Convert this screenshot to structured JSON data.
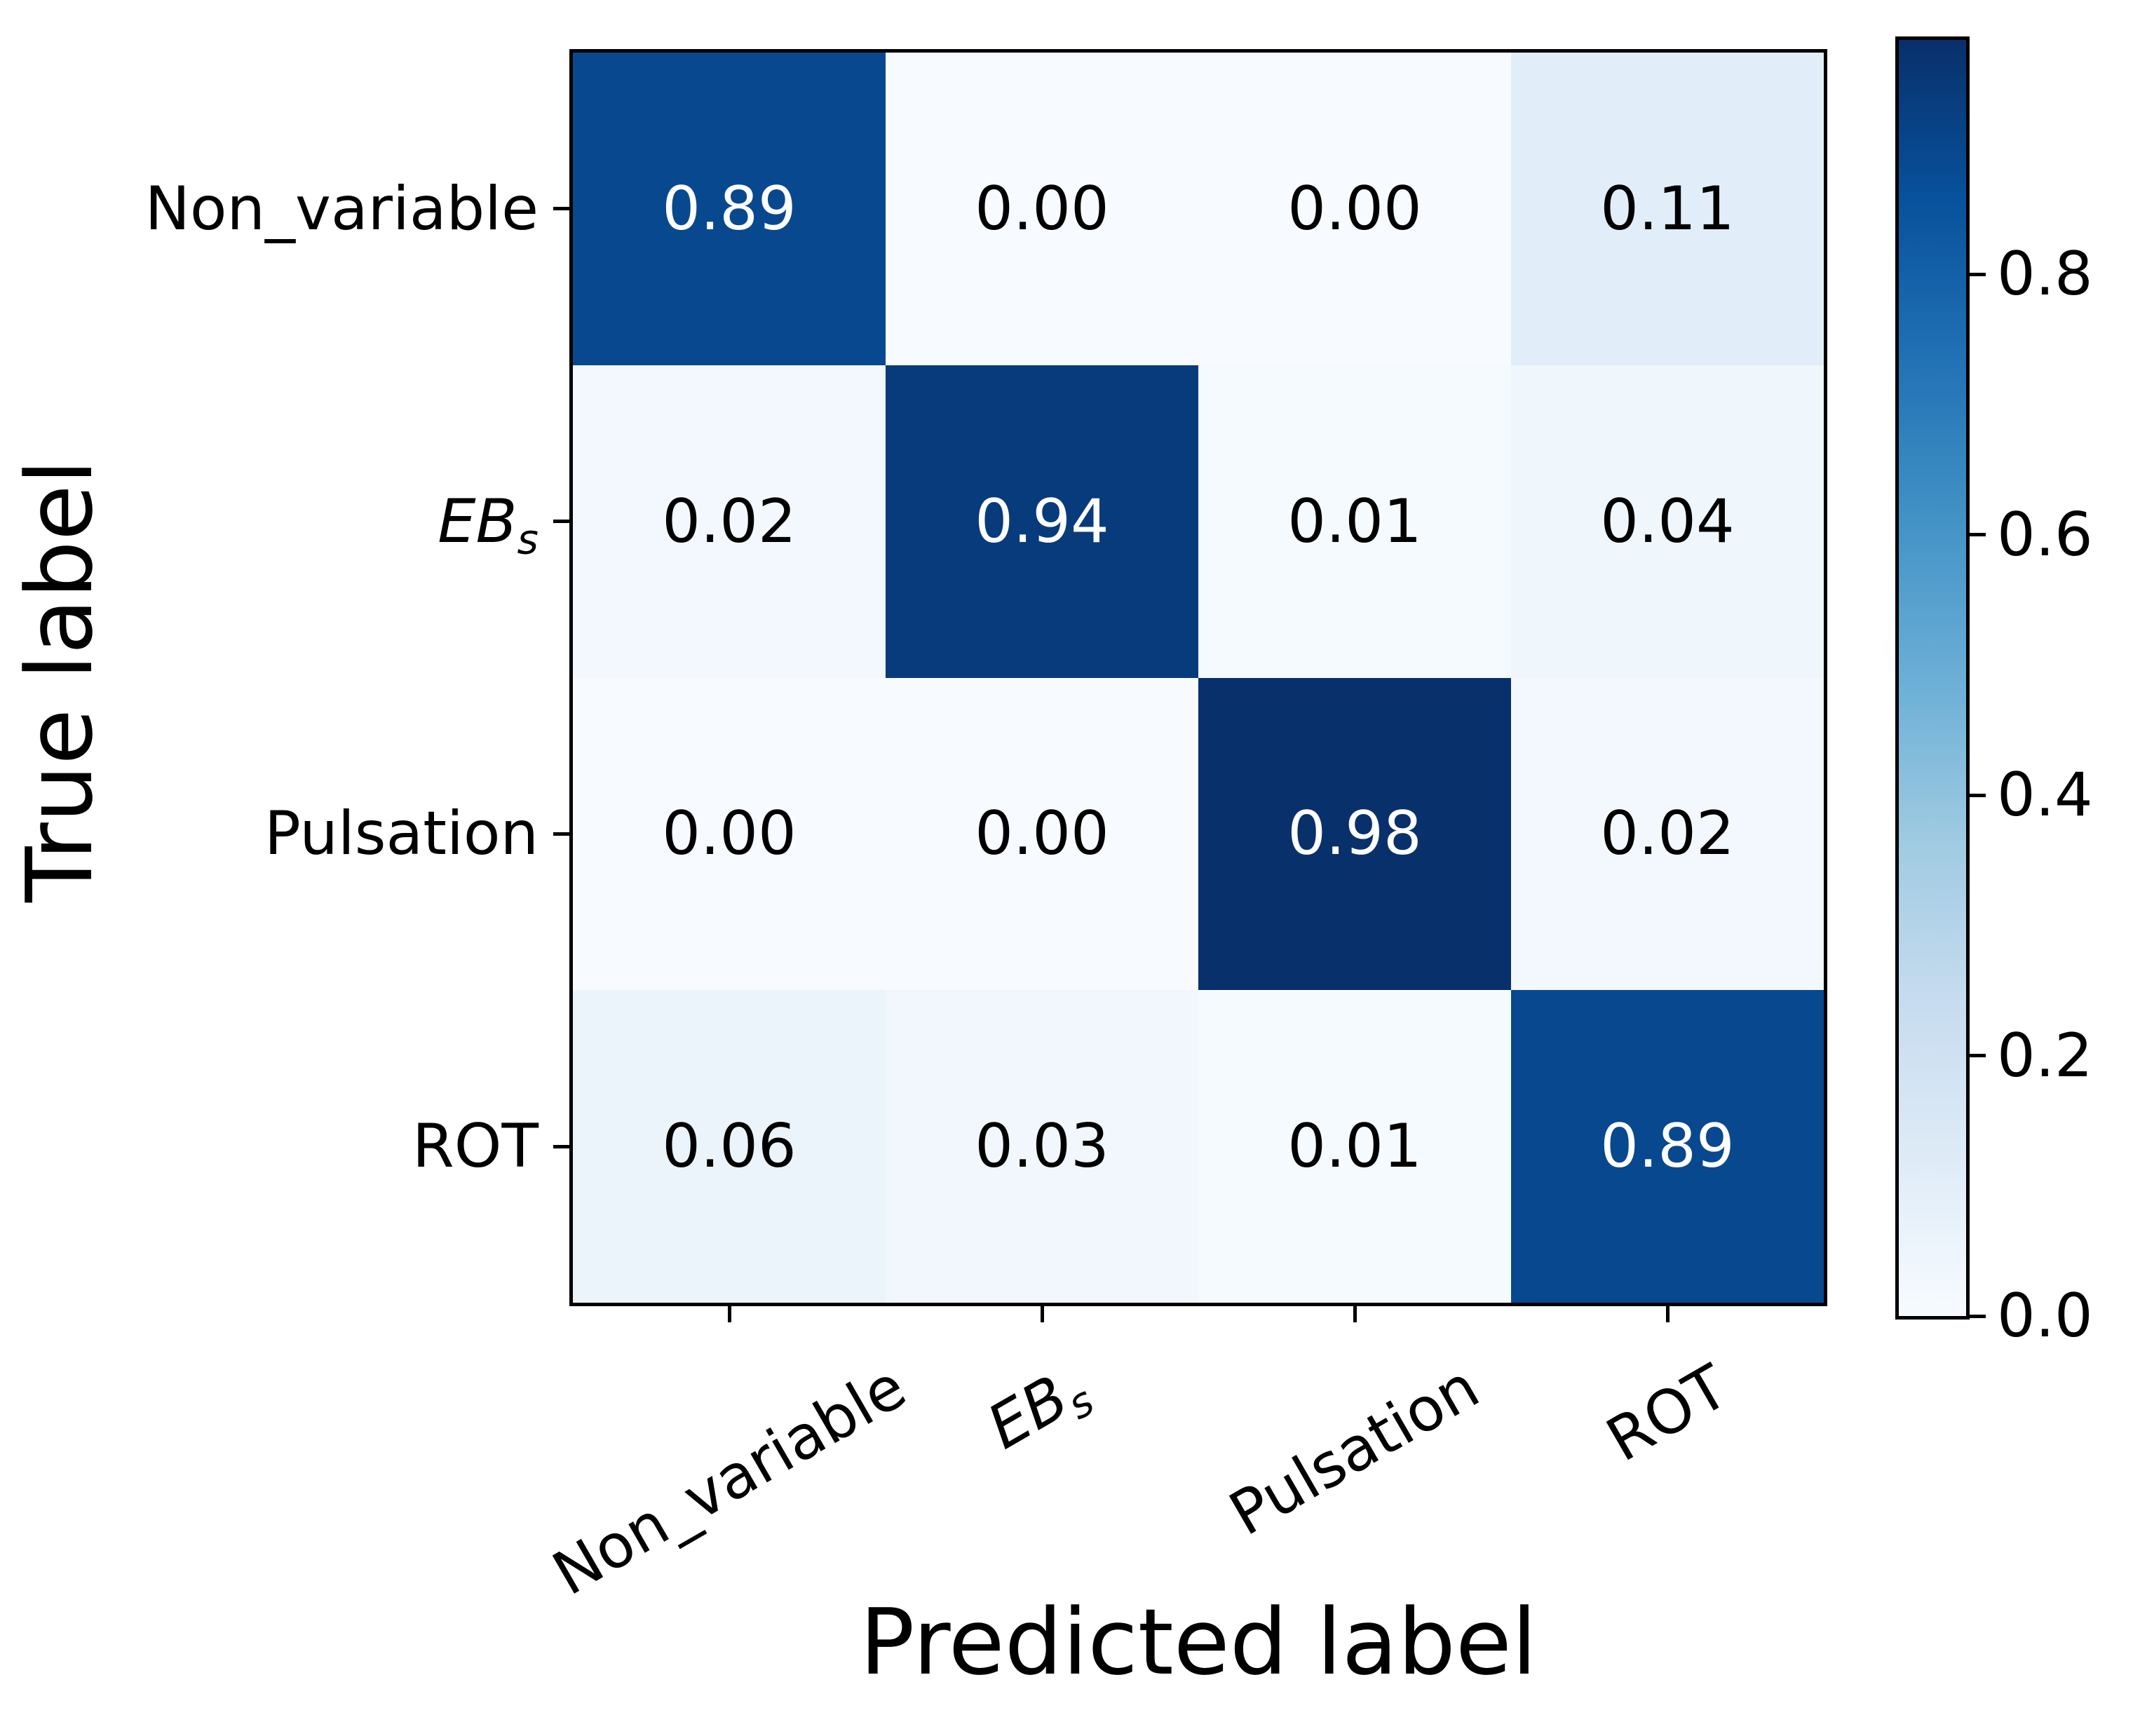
{
  "chart_data": {
    "type": "heatmap",
    "title": "",
    "xlabel": "Predicted label",
    "ylabel": "True label",
    "x_categories": [
      "Non_variable",
      "EB_s",
      "Pulsation",
      "ROT"
    ],
    "y_categories": [
      "Non_variable",
      "EB_s",
      "Pulsation",
      "ROT"
    ],
    "values": [
      [
        0.89,
        0.0,
        0.0,
        0.11
      ],
      [
        0.02,
        0.94,
        0.01,
        0.04
      ],
      [
        0.0,
        0.0,
        0.98,
        0.02
      ],
      [
        0.06,
        0.03,
        0.01,
        0.89
      ]
    ],
    "cell_text": [
      [
        "0.89",
        "0.00",
        "0.00",
        "0.11"
      ],
      [
        "0.02",
        "0.94",
        "0.01",
        "0.04"
      ],
      [
        "0.00",
        "0.00",
        "0.98",
        "0.02"
      ],
      [
        "0.06",
        "0.03",
        "0.01",
        "0.89"
      ]
    ],
    "colormap": "Blues",
    "vmin": 0.0,
    "vmax": 0.98,
    "grid": false,
    "legend_position": "colorbar-right"
  },
  "x_axis": {
    "title": "Predicted label",
    "ticks": [
      {
        "base": "Non_variable",
        "italic": false,
        "sub": ""
      },
      {
        "base": "EB",
        "italic": true,
        "sub": "s"
      },
      {
        "base": "Pulsation",
        "italic": false,
        "sub": ""
      },
      {
        "base": "ROT",
        "italic": false,
        "sub": ""
      }
    ]
  },
  "y_axis": {
    "title": "True label",
    "ticks": [
      {
        "base": "Non_variable",
        "italic": false,
        "sub": ""
      },
      {
        "base": "EB",
        "italic": true,
        "sub": "s"
      },
      {
        "base": "Pulsation",
        "italic": false,
        "sub": ""
      },
      {
        "base": "ROT",
        "italic": false,
        "sub": ""
      }
    ]
  },
  "colorbar": {
    "tick_labels": [
      "0.8",
      "0.6",
      "0.4",
      "0.2",
      "0.0"
    ],
    "tick_values": [
      0.8,
      0.6,
      0.4,
      0.2,
      0.0
    ],
    "gradient_top_to_bottom": [
      "#08306b",
      "#08519c",
      "#2171b5",
      "#4292c6",
      "#6baed6",
      "#9ecae1",
      "#c6dbef",
      "#deebf7",
      "#f7fbff"
    ]
  },
  "style": {
    "cell_colors": [
      [
        "#08488f",
        "#f7fbff",
        "#f7fbff",
        "#e1edf8"
      ],
      [
        "#f3f8fe",
        "#083b7b",
        "#f5fafe",
        "#eff6fc"
      ],
      [
        "#f7fbff",
        "#f7fbff",
        "#08306b",
        "#f3f8fe"
      ],
      [
        "#ebf3fb",
        "#f1f7fd",
        "#f5fafe",
        "#08488f"
      ]
    ],
    "cell_text_colors": [
      [
        "#ffffff",
        "#000000",
        "#000000",
        "#000000"
      ],
      [
        "#000000",
        "#ffffff",
        "#000000",
        "#000000"
      ],
      [
        "#000000",
        "#000000",
        "#ffffff",
        "#000000"
      ],
      [
        "#000000",
        "#000000",
        "#000000",
        "#ffffff"
      ]
    ],
    "spine_color": "#000000",
    "background": "#ffffff"
  }
}
